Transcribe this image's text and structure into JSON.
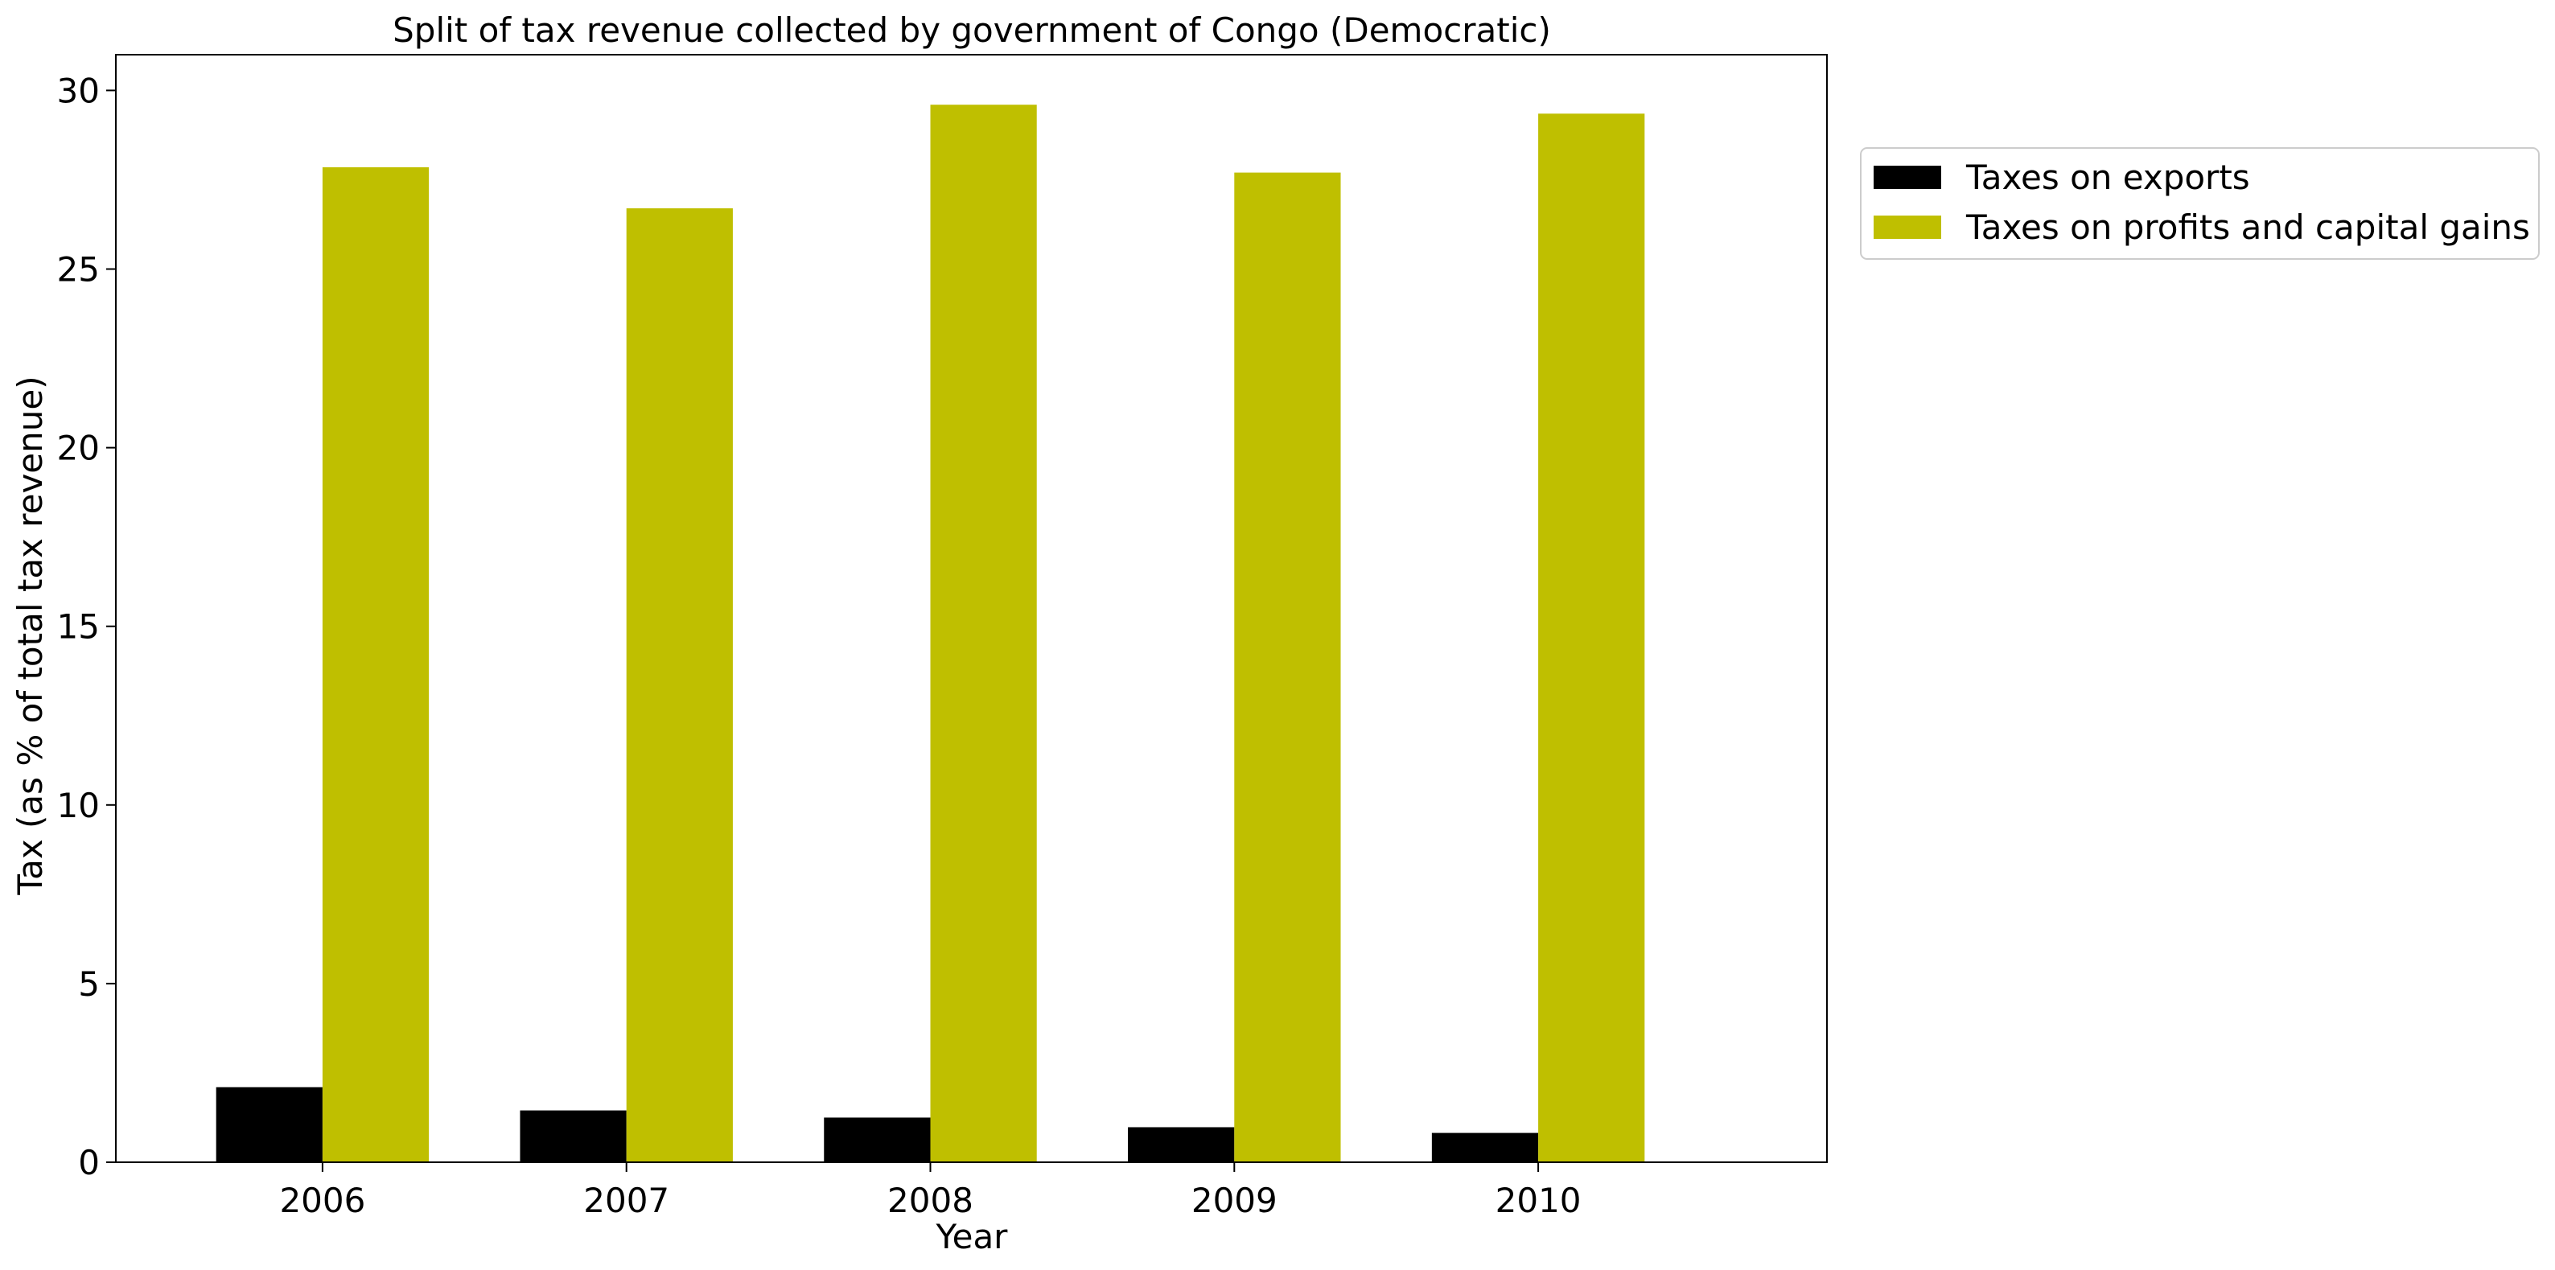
{
  "chart_data": {
    "type": "bar",
    "title": "Split of tax revenue collected by government of Congo (Democratic)",
    "xlabel": "Year",
    "ylabel": "Tax (as % of total tax revenue)",
    "categories": [
      "2006",
      "2007",
      "2008",
      "2009",
      "2010"
    ],
    "ylim": [
      0,
      31
    ],
    "yticks": [
      0,
      5,
      10,
      15,
      20,
      25,
      30
    ],
    "grid": false,
    "legend_position": "outside right, top",
    "series": [
      {
        "name": "Taxes on exports",
        "color": "#000000",
        "values": [
          2.1,
          1.45,
          1.25,
          0.98,
          0.82
        ]
      },
      {
        "name": "Taxes on profits and capital gains",
        "color": "#bfbf00",
        "values": [
          27.85,
          26.7,
          29.6,
          27.7,
          29.35
        ]
      }
    ]
  }
}
